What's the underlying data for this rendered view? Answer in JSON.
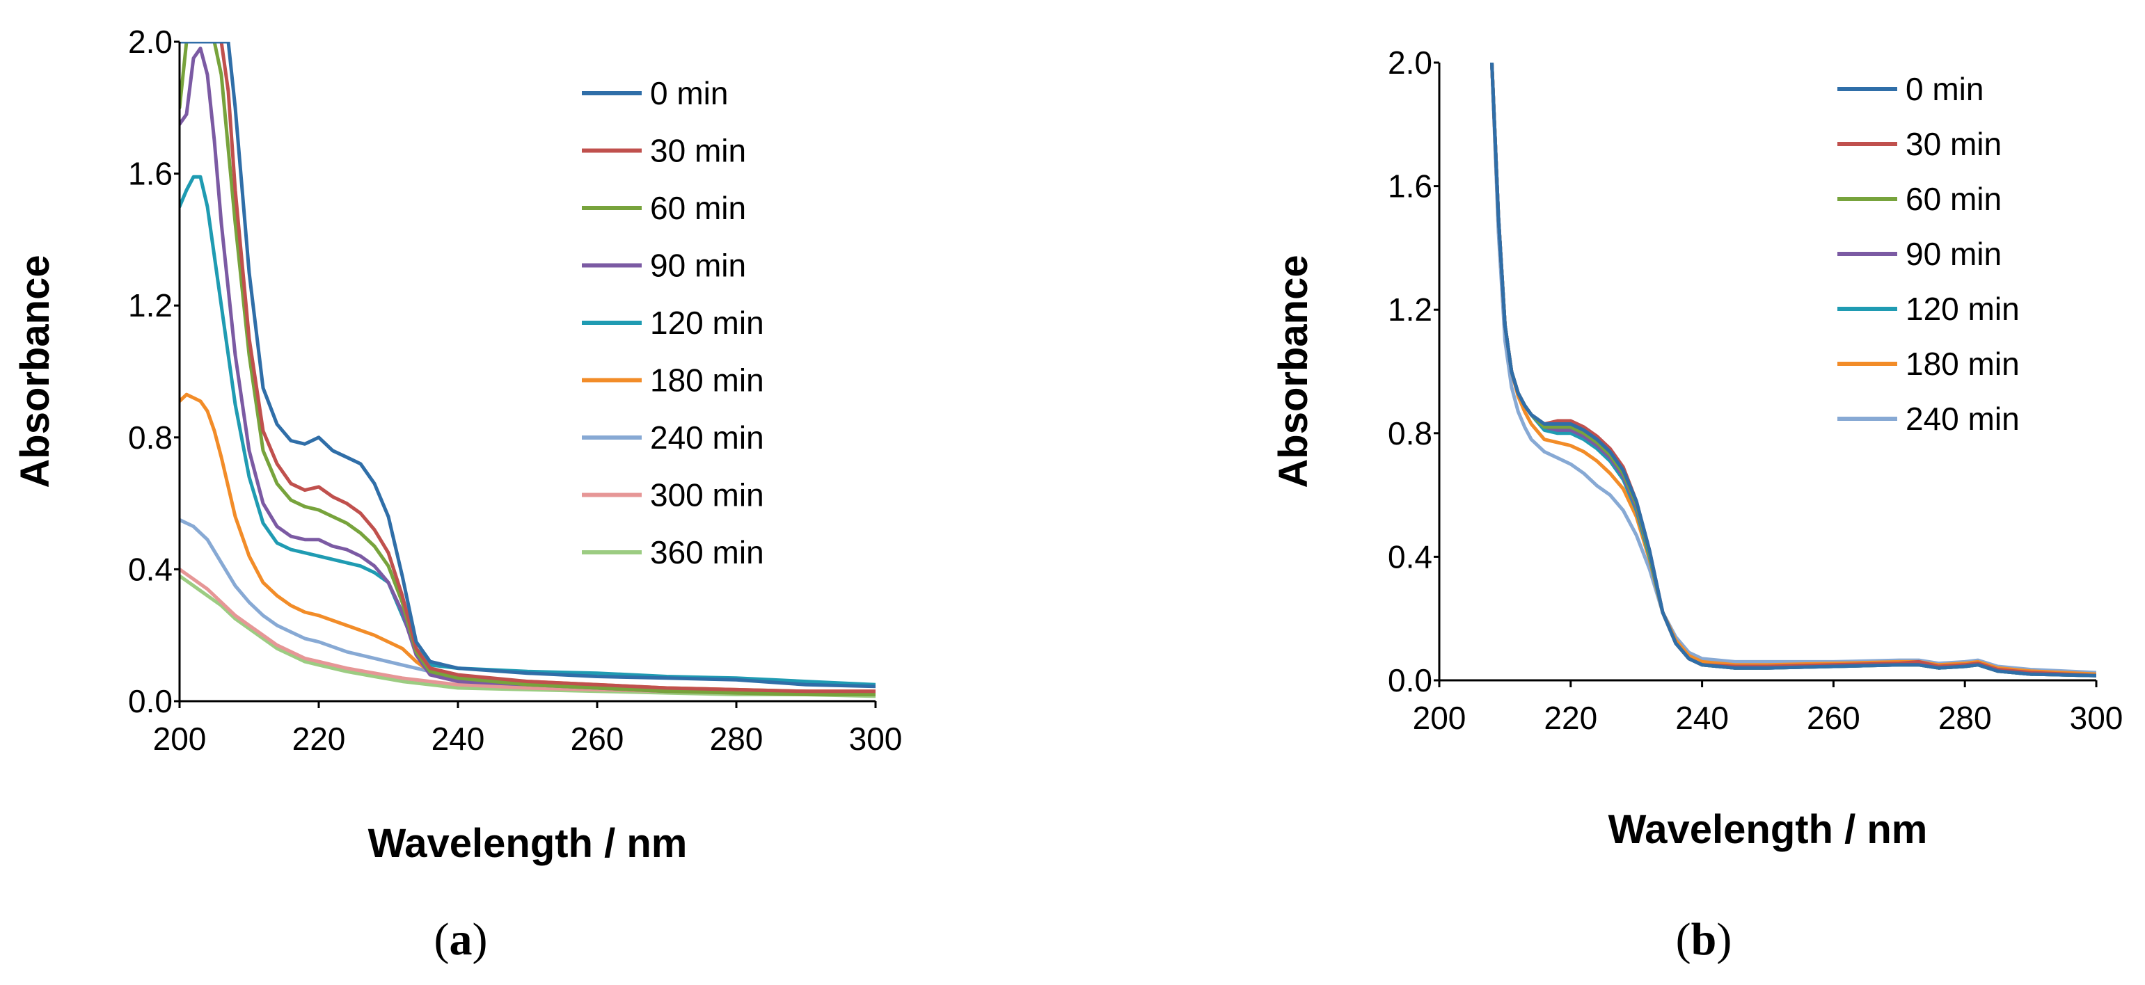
{
  "chart_data": [
    {
      "type": "line",
      "panel_label": "a",
      "xlabel": "Wavelength / nm",
      "ylabel": "Absorbance",
      "xlim": [
        200,
        300
      ],
      "ylim": [
        0,
        2.0
      ],
      "xticks": [
        "200",
        "220",
        "240",
        "260",
        "280",
        "300"
      ],
      "yticks": [
        "0.0",
        "0.4",
        "0.8",
        "1.2",
        "1.6",
        "2.0"
      ],
      "legend_position": "top-right",
      "series": [
        {
          "name": "0 min",
          "color": "#2f6ea8",
          "x": [
            200,
            204,
            205,
            206,
            207,
            208,
            210,
            212,
            214,
            216,
            218,
            220,
            222,
            224,
            226,
            228,
            230,
            232,
            234,
            236,
            240,
            250,
            260,
            270,
            280,
            290,
            300
          ],
          "y": [
            2.0,
            2.0,
            2.0,
            2.0,
            2.0,
            1.8,
            1.3,
            0.95,
            0.84,
            0.79,
            0.78,
            0.8,
            0.76,
            0.74,
            0.72,
            0.66,
            0.56,
            0.38,
            0.18,
            0.12,
            0.1,
            0.085,
            0.075,
            0.07,
            0.065,
            0.05,
            0.045
          ]
        },
        {
          "name": "30 min",
          "color": "#c0504d",
          "x": [
            200,
            204,
            205,
            206,
            207,
            208,
            210,
            212,
            214,
            216,
            218,
            220,
            222,
            224,
            226,
            228,
            230,
            232,
            234,
            236,
            240,
            250,
            260,
            270,
            280,
            290,
            300
          ],
          "y": [
            2.0,
            2.0,
            2.0,
            2.0,
            1.85,
            1.55,
            1.1,
            0.82,
            0.72,
            0.66,
            0.64,
            0.65,
            0.62,
            0.6,
            0.57,
            0.52,
            0.45,
            0.32,
            0.16,
            0.1,
            0.08,
            0.06,
            0.05,
            0.04,
            0.035,
            0.03,
            0.03
          ]
        },
        {
          "name": "60 min",
          "color": "#77a33c",
          "x": [
            200,
            201,
            202,
            203,
            204,
            205,
            206,
            208,
            210,
            212,
            214,
            216,
            218,
            220,
            222,
            224,
            226,
            228,
            230,
            232,
            234,
            236,
            240,
            250,
            260,
            270,
            280,
            290,
            300
          ],
          "y": [
            1.8,
            2.0,
            2.0,
            2.0,
            2.0,
            2.0,
            1.9,
            1.45,
            1.05,
            0.76,
            0.66,
            0.61,
            0.59,
            0.58,
            0.56,
            0.54,
            0.51,
            0.47,
            0.41,
            0.3,
            0.15,
            0.09,
            0.07,
            0.05,
            0.04,
            0.03,
            0.025,
            0.02,
            0.02
          ]
        },
        {
          "name": "90 min",
          "color": "#7b5aa3",
          "x": [
            200,
            201,
            202,
            203,
            204,
            205,
            206,
            208,
            210,
            212,
            214,
            216,
            218,
            220,
            222,
            224,
            226,
            228,
            230,
            232,
            234,
            236,
            240,
            250,
            260,
            270,
            280,
            290,
            300
          ],
          "y": [
            1.75,
            1.78,
            1.95,
            1.98,
            1.9,
            1.7,
            1.45,
            1.05,
            0.76,
            0.6,
            0.53,
            0.5,
            0.49,
            0.49,
            0.47,
            0.46,
            0.44,
            0.41,
            0.36,
            0.27,
            0.14,
            0.08,
            0.06,
            0.05,
            0.04,
            0.03,
            0.03,
            0.025,
            0.02
          ]
        },
        {
          "name": "120 min",
          "color": "#1f9bb2",
          "x": [
            200,
            201,
            202,
            203,
            204,
            205,
            206,
            208,
            210,
            212,
            214,
            216,
            218,
            220,
            222,
            224,
            226,
            228,
            230,
            232,
            234,
            236,
            240,
            250,
            260,
            270,
            280,
            290,
            300
          ],
          "y": [
            1.5,
            1.55,
            1.59,
            1.59,
            1.5,
            1.35,
            1.2,
            0.9,
            0.68,
            0.54,
            0.48,
            0.46,
            0.45,
            0.44,
            0.43,
            0.42,
            0.41,
            0.39,
            0.36,
            0.26,
            0.16,
            0.11,
            0.1,
            0.09,
            0.085,
            0.075,
            0.07,
            0.06,
            0.05
          ]
        },
        {
          "name": "180 min",
          "color": "#f28c28",
          "x": [
            200,
            201,
            202,
            203,
            204,
            205,
            206,
            208,
            210,
            212,
            214,
            216,
            218,
            220,
            224,
            228,
            232,
            234,
            236,
            240,
            250,
            260,
            270,
            280,
            290,
            300
          ],
          "y": [
            0.91,
            0.93,
            0.92,
            0.91,
            0.88,
            0.82,
            0.74,
            0.56,
            0.44,
            0.36,
            0.32,
            0.29,
            0.27,
            0.26,
            0.23,
            0.2,
            0.16,
            0.12,
            0.09,
            0.07,
            0.06,
            0.05,
            0.04,
            0.035,
            0.03,
            0.03
          ]
        },
        {
          "name": "240 min",
          "color": "#87a9d4",
          "x": [
            200,
            202,
            204,
            206,
            208,
            210,
            212,
            214,
            216,
            218,
            220,
            224,
            228,
            232,
            236,
            240,
            250,
            260,
            270,
            280,
            290,
            300
          ],
          "y": [
            0.55,
            0.53,
            0.49,
            0.42,
            0.35,
            0.3,
            0.26,
            0.23,
            0.21,
            0.19,
            0.18,
            0.15,
            0.13,
            0.11,
            0.09,
            0.07,
            0.05,
            0.04,
            0.035,
            0.03,
            0.03,
            0.025
          ]
        },
        {
          "name": "300 min",
          "color": "#e69696",
          "x": [
            200,
            202,
            204,
            206,
            208,
            210,
            212,
            214,
            216,
            218,
            220,
            224,
            228,
            232,
            236,
            240,
            250,
            260,
            270,
            280,
            290,
            300
          ],
          "y": [
            0.4,
            0.37,
            0.34,
            0.3,
            0.26,
            0.23,
            0.2,
            0.17,
            0.15,
            0.13,
            0.12,
            0.1,
            0.085,
            0.07,
            0.06,
            0.05,
            0.04,
            0.035,
            0.03,
            0.025,
            0.02,
            0.02
          ]
        },
        {
          "name": "360 min",
          "color": "#9ccc82",
          "x": [
            200,
            202,
            204,
            206,
            208,
            210,
            212,
            214,
            216,
            218,
            220,
            224,
            228,
            232,
            236,
            240,
            250,
            260,
            270,
            280,
            290,
            300
          ],
          "y": [
            0.38,
            0.35,
            0.32,
            0.29,
            0.25,
            0.22,
            0.19,
            0.16,
            0.14,
            0.12,
            0.11,
            0.09,
            0.075,
            0.06,
            0.05,
            0.04,
            0.035,
            0.03,
            0.025,
            0.02,
            0.02,
            0.015
          ]
        }
      ]
    },
    {
      "type": "line",
      "panel_label": "b",
      "xlabel": "Wavelength / nm",
      "ylabel": "Absorbance",
      "xlim": [
        200,
        300
      ],
      "ylim": [
        0,
        2.0
      ],
      "xticks": [
        "200",
        "220",
        "240",
        "260",
        "280",
        "300"
      ],
      "yticks": [
        "0.0",
        "0.4",
        "0.8",
        "1.2",
        "1.6",
        "2.0"
      ],
      "legend_position": "top-right",
      "series": [
        {
          "name": "0 min",
          "color": "#2f6ea8",
          "x": [
            208,
            209,
            210,
            211,
            212,
            213,
            214,
            216,
            218,
            220,
            222,
            224,
            226,
            228,
            230,
            232,
            234,
            236,
            238,
            240,
            245,
            250,
            260,
            270,
            273,
            276,
            280,
            282,
            285,
            290,
            300
          ],
          "y": [
            2.0,
            1.5,
            1.15,
            1.0,
            0.93,
            0.89,
            0.86,
            0.83,
            0.83,
            0.83,
            0.81,
            0.78,
            0.74,
            0.68,
            0.58,
            0.42,
            0.22,
            0.12,
            0.07,
            0.05,
            0.04,
            0.04,
            0.045,
            0.05,
            0.05,
            0.04,
            0.045,
            0.05,
            0.03,
            0.02,
            0.015
          ]
        },
        {
          "name": "30 min",
          "color": "#c0504d",
          "x": [
            208,
            209,
            210,
            211,
            212,
            213,
            214,
            216,
            218,
            220,
            222,
            224,
            226,
            228,
            230,
            232,
            234,
            236,
            238,
            240,
            245,
            250,
            260,
            270,
            273,
            276,
            280,
            282,
            285,
            290,
            300
          ],
          "y": [
            2.0,
            1.5,
            1.15,
            1.0,
            0.93,
            0.89,
            0.86,
            0.83,
            0.84,
            0.84,
            0.82,
            0.79,
            0.75,
            0.69,
            0.58,
            0.42,
            0.22,
            0.12,
            0.07,
            0.05,
            0.045,
            0.045,
            0.05,
            0.055,
            0.06,
            0.045,
            0.05,
            0.055,
            0.035,
            0.025,
            0.015
          ]
        },
        {
          "name": "60 min",
          "color": "#77a33c",
          "x": [
            208,
            209,
            210,
            211,
            212,
            213,
            214,
            216,
            218,
            220,
            222,
            224,
            226,
            228,
            230,
            232,
            234,
            236,
            238,
            240,
            245,
            250,
            260,
            270,
            273,
            276,
            280,
            282,
            285,
            290,
            300
          ],
          "y": [
            2.0,
            1.5,
            1.15,
            1.0,
            0.93,
            0.89,
            0.86,
            0.82,
            0.82,
            0.82,
            0.8,
            0.77,
            0.73,
            0.67,
            0.57,
            0.41,
            0.22,
            0.12,
            0.07,
            0.05,
            0.04,
            0.04,
            0.045,
            0.05,
            0.05,
            0.04,
            0.045,
            0.05,
            0.03,
            0.02,
            0.015
          ]
        },
        {
          "name": "90 min",
          "color": "#7b5aa3",
          "x": [
            208,
            209,
            210,
            211,
            212,
            213,
            214,
            216,
            218,
            220,
            222,
            224,
            226,
            228,
            230,
            232,
            234,
            236,
            238,
            240,
            245,
            250,
            260,
            270,
            273,
            276,
            280,
            282,
            285,
            290,
            300
          ],
          "y": [
            2.0,
            1.5,
            1.15,
            1.0,
            0.93,
            0.89,
            0.86,
            0.82,
            0.81,
            0.81,
            0.79,
            0.76,
            0.72,
            0.66,
            0.56,
            0.41,
            0.22,
            0.12,
            0.07,
            0.05,
            0.04,
            0.04,
            0.045,
            0.05,
            0.05,
            0.04,
            0.045,
            0.05,
            0.03,
            0.02,
            0.015
          ]
        },
        {
          "name": "120 min",
          "color": "#1f9bb2",
          "x": [
            208,
            209,
            210,
            211,
            212,
            213,
            214,
            216,
            218,
            220,
            222,
            224,
            226,
            228,
            230,
            232,
            234,
            236,
            238,
            240,
            245,
            250,
            260,
            270,
            273,
            276,
            280,
            282,
            285,
            290,
            300
          ],
          "y": [
            2.0,
            1.5,
            1.15,
            1.0,
            0.93,
            0.89,
            0.86,
            0.81,
            0.8,
            0.8,
            0.78,
            0.75,
            0.71,
            0.65,
            0.55,
            0.4,
            0.22,
            0.12,
            0.07,
            0.05,
            0.04,
            0.04,
            0.045,
            0.05,
            0.05,
            0.04,
            0.045,
            0.05,
            0.03,
            0.02,
            0.015
          ]
        },
        {
          "name": "180 min",
          "color": "#f28c28",
          "x": [
            208,
            209,
            210,
            211,
            212,
            213,
            214,
            216,
            218,
            220,
            222,
            224,
            226,
            228,
            230,
            232,
            234,
            236,
            238,
            240,
            245,
            250,
            260,
            270,
            273,
            276,
            280,
            282,
            285,
            290,
            300
          ],
          "y": [
            2.0,
            1.5,
            1.15,
            1.0,
            0.92,
            0.87,
            0.83,
            0.78,
            0.77,
            0.76,
            0.74,
            0.71,
            0.67,
            0.62,
            0.53,
            0.39,
            0.22,
            0.13,
            0.08,
            0.06,
            0.05,
            0.05,
            0.055,
            0.06,
            0.06,
            0.05,
            0.055,
            0.06,
            0.04,
            0.03,
            0.02
          ]
        },
        {
          "name": "240 min",
          "color": "#87a9d4",
          "x": [
            208,
            209,
            210,
            211,
            212,
            213,
            214,
            216,
            218,
            220,
            222,
            224,
            226,
            228,
            230,
            232,
            234,
            236,
            238,
            240,
            245,
            250,
            260,
            270,
            273,
            276,
            280,
            282,
            285,
            290,
            300
          ],
          "y": [
            2.0,
            1.45,
            1.1,
            0.95,
            0.87,
            0.82,
            0.78,
            0.74,
            0.72,
            0.7,
            0.67,
            0.63,
            0.6,
            0.55,
            0.47,
            0.36,
            0.22,
            0.14,
            0.09,
            0.07,
            0.06,
            0.06,
            0.06,
            0.065,
            0.065,
            0.055,
            0.06,
            0.065,
            0.045,
            0.035,
            0.025
          ]
        }
      ]
    }
  ]
}
